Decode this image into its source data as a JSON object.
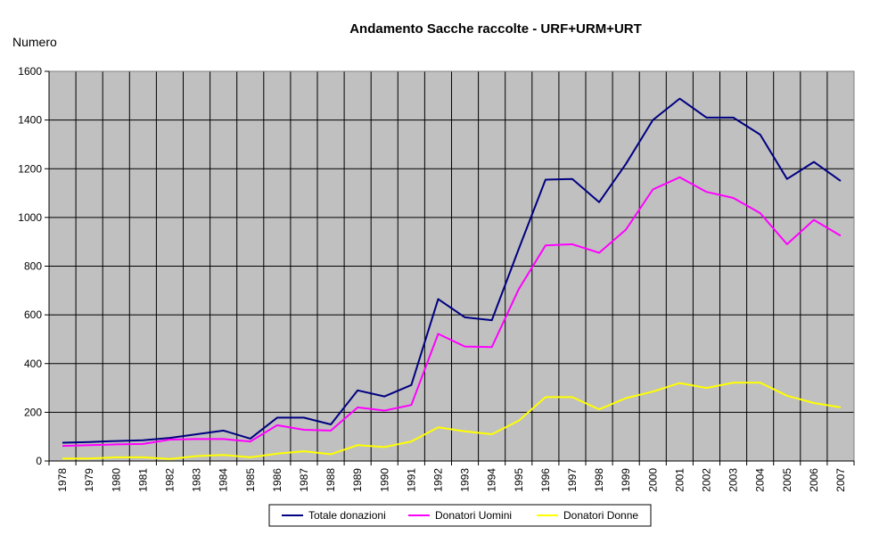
{
  "chart_data": {
    "type": "line",
    "title": "Andamento Sacche raccolte - URF+URM+URT",
    "ylabel": "Numero",
    "xlabel": "",
    "ylim": [
      0,
      1600
    ],
    "yticks": [
      0,
      200,
      400,
      600,
      800,
      1000,
      1200,
      1400,
      1600
    ],
    "grid": true,
    "plot_background": "#c0c0c0",
    "legend_position": "bottom",
    "categories": [
      "1978",
      "1979",
      "1980",
      "1981",
      "1982",
      "1983",
      "1984",
      "1985",
      "1986",
      "1987",
      "1988",
      "1989",
      "1990",
      "1991",
      "1992",
      "1993",
      "1994",
      "1995",
      "1996",
      "1997",
      "1998",
      "1999",
      "2000",
      "2001",
      "2002",
      "2003",
      "2004",
      "2005",
      "2006",
      "2007"
    ],
    "series": [
      {
        "name": "Totale donazioni",
        "color": "#000080",
        "values": [
          75,
          78,
          82,
          85,
          95,
          110,
          125,
          92,
          178,
          178,
          150,
          290,
          265,
          312,
          665,
          590,
          578,
          870,
          1155,
          1158,
          1063,
          1220,
          1400,
          1488,
          1410,
          1410,
          1340,
          1158,
          1228,
          1150
        ]
      },
      {
        "name": "Donatori Uomini",
        "color": "#ff00ff",
        "values": [
          62,
          65,
          68,
          70,
          88,
          90,
          90,
          80,
          147,
          128,
          125,
          220,
          207,
          230,
          522,
          470,
          468,
          705,
          885,
          890,
          855,
          950,
          1115,
          1165,
          1105,
          1080,
          1018,
          890,
          990,
          925
        ]
      },
      {
        "name": "Donatori Donne",
        "color": "#ffff00",
        "values": [
          10,
          10,
          15,
          15,
          8,
          20,
          25,
          15,
          30,
          40,
          28,
          65,
          57,
          80,
          138,
          122,
          110,
          165,
          262,
          262,
          212,
          258,
          285,
          320,
          300,
          322,
          322,
          268,
          238,
          220
        ]
      }
    ]
  }
}
